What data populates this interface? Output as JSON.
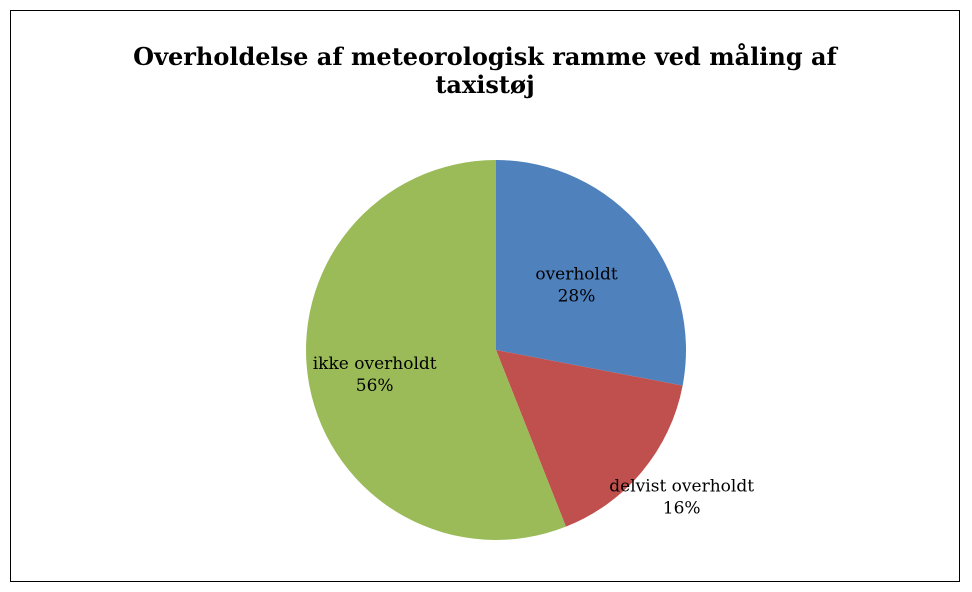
{
  "chart_data": {
    "type": "pie",
    "title": "Overholdelse af meteorologisk ramme ved måling af taxistøj",
    "slices": [
      {
        "label": "overholdt",
        "percent_label": "28%",
        "value": 28,
        "color": "#4f81bd"
      },
      {
        "label": "delvist overholdt",
        "percent_label": "16%",
        "value": 16,
        "color": "#c0504d"
      },
      {
        "label": "ikke overholdt",
        "percent_label": "56%",
        "value": 56,
        "color": "#9bbb59"
      }
    ],
    "start_angle": "12 o'clock",
    "direction": "clockwise",
    "legend": "none"
  }
}
